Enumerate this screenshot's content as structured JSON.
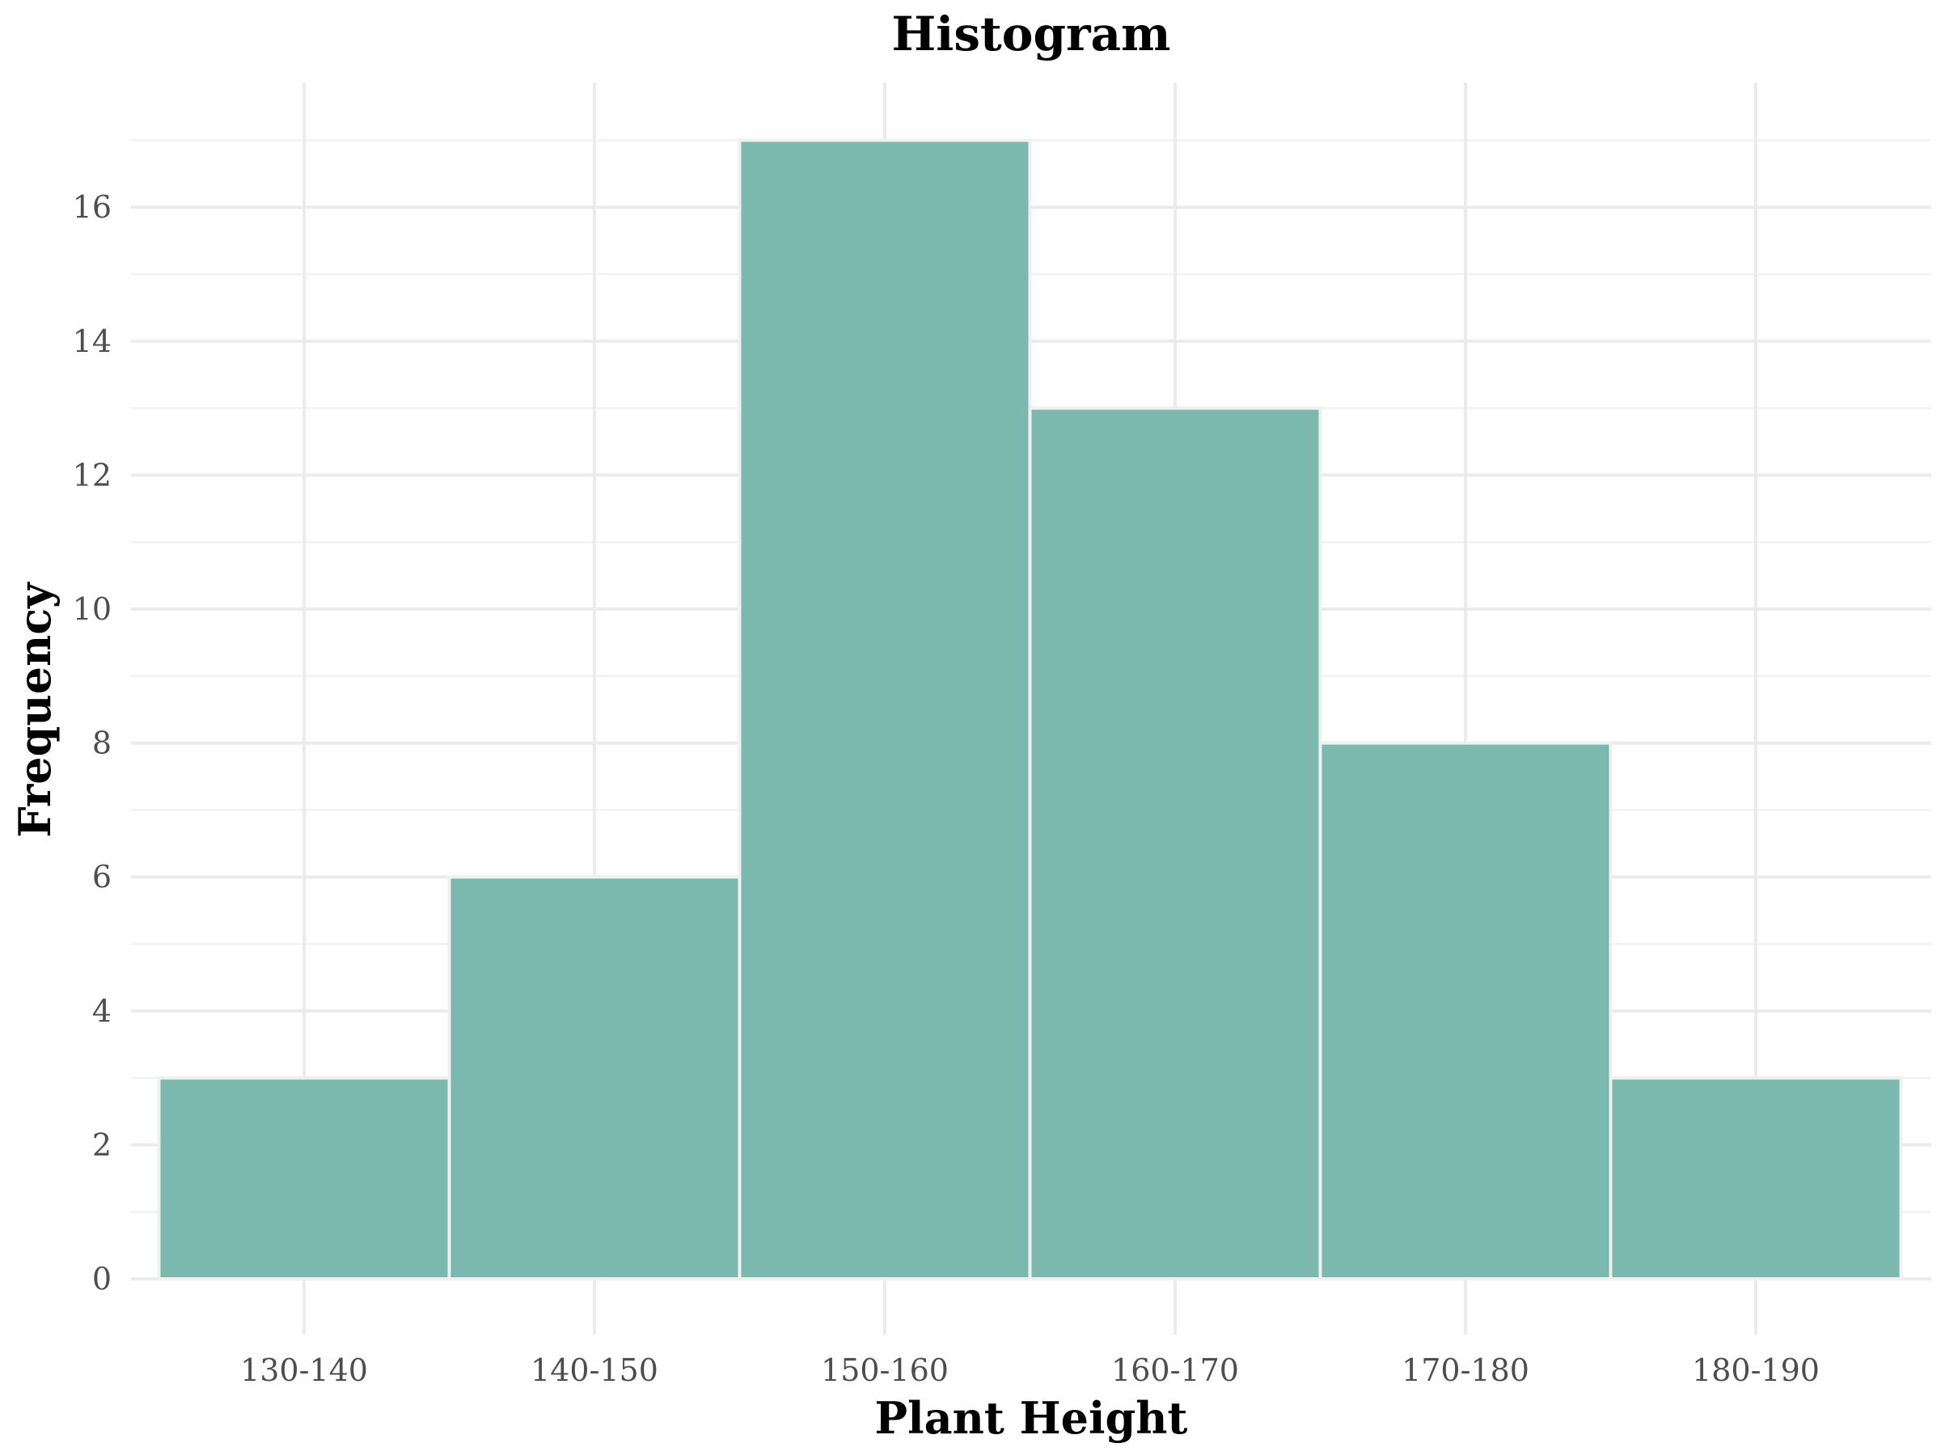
{
  "chart_data": {
    "type": "bar",
    "title": "Histogram",
    "xlabel": "Plant Height",
    "ylabel": "Frequency",
    "categories": [
      "130-140",
      "140-150",
      "150-160",
      "160-170",
      "170-180",
      "180-190"
    ],
    "values": [
      3,
      6,
      17,
      13,
      8,
      3
    ],
    "ylim": [
      0,
      17.85
    ],
    "yticks": [
      0,
      2,
      4,
      6,
      8,
      10,
      12,
      14,
      16
    ],
    "yticks_labels": [
      "0",
      "2",
      "4",
      "6",
      "8",
      "10",
      "12",
      "14",
      "16"
    ],
    "grid": true,
    "legend": "none",
    "colors": {
      "bar_fill": "#7bb8ad",
      "bar_edge": "#f0f0f0",
      "grid": "#ebebeb",
      "tick_text": "#4d4d4d",
      "title_text": "#000000"
    }
  }
}
